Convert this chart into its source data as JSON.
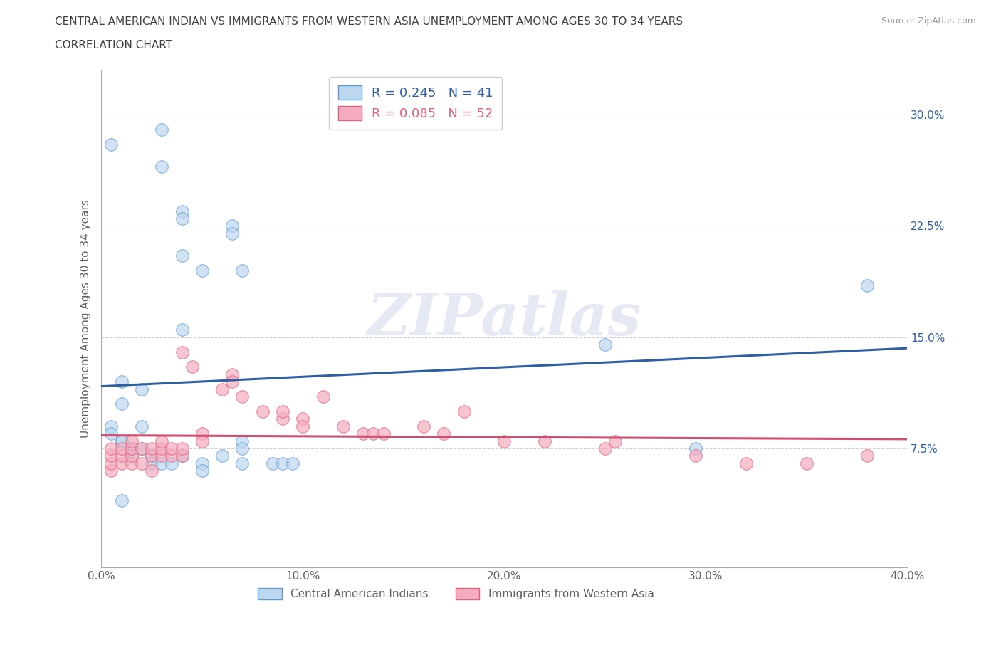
{
  "title_line1": "CENTRAL AMERICAN INDIAN VS IMMIGRANTS FROM WESTERN ASIA UNEMPLOYMENT AMONG AGES 30 TO 34 YEARS",
  "title_line2": "CORRELATION CHART",
  "source": "Source: ZipAtlas.com",
  "ylabel": "Unemployment Among Ages 30 to 34 years",
  "xlim": [
    0.0,
    0.4
  ],
  "ylim": [
    -0.005,
    0.33
  ],
  "xtick_pos": [
    0.0,
    0.05,
    0.1,
    0.15,
    0.2,
    0.25,
    0.3,
    0.35,
    0.4
  ],
  "xtick_labels": [
    "0.0%",
    "",
    "10.0%",
    "",
    "20.0%",
    "",
    "30.0%",
    "",
    "40.0%"
  ],
  "ytick_positions": [
    0.075,
    0.15,
    0.225,
    0.3
  ],
  "ytick_labels": [
    "7.5%",
    "15.0%",
    "22.5%",
    "30.0%"
  ],
  "blue_R": 0.245,
  "blue_N": 41,
  "pink_R": 0.085,
  "pink_N": 52,
  "blue_face_color": "#BDD7EE",
  "pink_face_color": "#F4ACBE",
  "blue_edge_color": "#5B9BD5",
  "pink_edge_color": "#E06080",
  "blue_line_color": "#2E5FA3",
  "pink_line_color": "#CC5070",
  "legend_label_blue": "Central American Indians",
  "legend_label_pink": "Immigrants from Western Asia",
  "blue_x": [
    0.03,
    0.03,
    0.005,
    0.04,
    0.04,
    0.04,
    0.05,
    0.065,
    0.065,
    0.07,
    0.04,
    0.25,
    0.01,
    0.01,
    0.005,
    0.005,
    0.01,
    0.01,
    0.015,
    0.015,
    0.015,
    0.02,
    0.02,
    0.02,
    0.025,
    0.025,
    0.03,
    0.035,
    0.04,
    0.05,
    0.05,
    0.06,
    0.07,
    0.07,
    0.07,
    0.085,
    0.09,
    0.095,
    0.01,
    0.295,
    0.38
  ],
  "blue_y": [
    0.29,
    0.265,
    0.28,
    0.235,
    0.23,
    0.205,
    0.195,
    0.225,
    0.22,
    0.195,
    0.155,
    0.145,
    0.12,
    0.105,
    0.09,
    0.085,
    0.08,
    0.08,
    0.07,
    0.075,
    0.075,
    0.115,
    0.09,
    0.075,
    0.07,
    0.065,
    0.065,
    0.065,
    0.07,
    0.065,
    0.06,
    0.07,
    0.08,
    0.075,
    0.065,
    0.065,
    0.065,
    0.065,
    0.04,
    0.075,
    0.185
  ],
  "pink_x": [
    0.005,
    0.005,
    0.005,
    0.005,
    0.01,
    0.01,
    0.01,
    0.015,
    0.015,
    0.015,
    0.015,
    0.02,
    0.02,
    0.025,
    0.025,
    0.025,
    0.03,
    0.03,
    0.03,
    0.035,
    0.035,
    0.04,
    0.04,
    0.04,
    0.045,
    0.05,
    0.05,
    0.06,
    0.065,
    0.065,
    0.07,
    0.08,
    0.09,
    0.09,
    0.1,
    0.1,
    0.11,
    0.12,
    0.13,
    0.135,
    0.14,
    0.16,
    0.17,
    0.18,
    0.2,
    0.22,
    0.25,
    0.255,
    0.295,
    0.32,
    0.35,
    0.38
  ],
  "pink_y": [
    0.06,
    0.065,
    0.07,
    0.075,
    0.065,
    0.07,
    0.075,
    0.065,
    0.07,
    0.075,
    0.08,
    0.065,
    0.075,
    0.06,
    0.07,
    0.075,
    0.07,
    0.075,
    0.08,
    0.07,
    0.075,
    0.14,
    0.07,
    0.075,
    0.13,
    0.085,
    0.08,
    0.115,
    0.125,
    0.12,
    0.11,
    0.1,
    0.095,
    0.1,
    0.095,
    0.09,
    0.11,
    0.09,
    0.085,
    0.085,
    0.085,
    0.09,
    0.085,
    0.1,
    0.08,
    0.08,
    0.075,
    0.08,
    0.07,
    0.065,
    0.065,
    0.07
  ],
  "watermark_text": "ZIPatlas",
  "bg_color": "#FFFFFF",
  "grid_color": "#CCCCCC",
  "spine_color": "#AAAAAA",
  "title_color": "#404040",
  "label_color": "#606060",
  "source_color": "#999999"
}
